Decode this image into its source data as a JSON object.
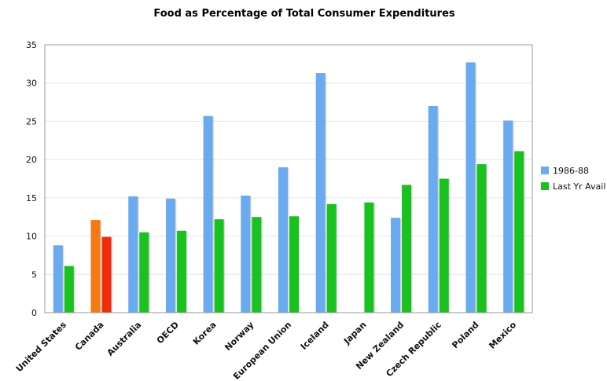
{
  "chart_data": {
    "type": "bar",
    "title": "Food as Percentage of Total Consumer Expenditures",
    "categories": [
      "United States",
      "Canada",
      "Australia",
      "OECD",
      "Korea",
      "Norway",
      "European Union",
      "Iceland",
      "Japan",
      "New Zealand",
      "Czech Republic",
      "Poland",
      "Mexico"
    ],
    "series": [
      {
        "name": "1986-88",
        "color": "#6aaaf0",
        "values": [
          8.8,
          12.1,
          15.2,
          14.9,
          25.7,
          15.3,
          19.0,
          31.3,
          null,
          12.4,
          27.0,
          32.7,
          25.1
        ]
      },
      {
        "name": "Last Yr Avail",
        "color": "#19c21e",
        "values": [
          6.1,
          9.9,
          10.5,
          10.7,
          12.2,
          12.5,
          12.6,
          14.2,
          14.4,
          16.7,
          17.5,
          19.4,
          21.1
        ]
      }
    ],
    "highlight": {
      "category": "Canada",
      "colors": [
        "#f57a12",
        "#ee2d0c"
      ]
    },
    "xlabel": "",
    "ylabel": "",
    "ylim": [
      0,
      35
    ],
    "yticks": [
      0,
      5,
      10,
      15,
      20,
      25,
      30,
      35
    ],
    "grid": true,
    "legend_position": "right"
  }
}
